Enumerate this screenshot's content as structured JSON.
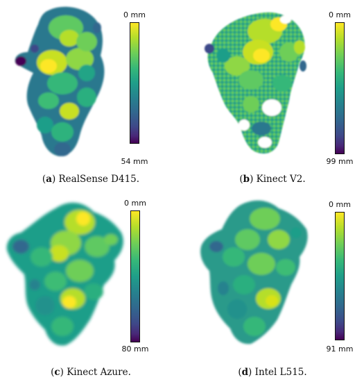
{
  "panels": [
    {
      "id": "a",
      "caption_tag": "a",
      "caption_text": "RealSense D415.",
      "scale_min_label": "0 mm",
      "scale_max_label": "54 mm"
    },
    {
      "id": "b",
      "caption_tag": "b",
      "caption_text": "Kinect V2.",
      "scale_min_label": "0 mm",
      "scale_max_label": "99 mm"
    },
    {
      "id": "c",
      "caption_tag": "c",
      "caption_text": "Kinect Azure.",
      "scale_min_label": "0 mm",
      "scale_max_label": "80 mm"
    },
    {
      "id": "d",
      "caption_tag": "d",
      "caption_text": "Intel L515.",
      "scale_min_label": "0 mm",
      "scale_max_label": "91 mm"
    }
  ],
  "colormap": [
    "#440154",
    "#482878",
    "#3e4989",
    "#31688e",
    "#26828e",
    "#1f9e89",
    "#35b779",
    "#6ece58",
    "#b5de2b",
    "#fde725"
  ]
}
